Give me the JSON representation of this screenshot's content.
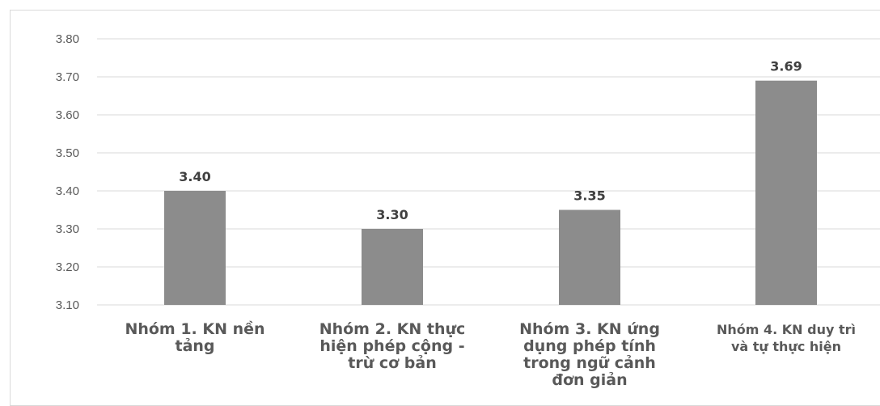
{
  "chart_data": {
    "type": "bar",
    "categories": [
      "Nhóm 1. KN nền tảng",
      "Nhóm 2. KN thực hiện phép cộng - trừ cơ bản",
      "Nhóm 3. KN ứng dụng phép tính trong ngữ cảnh đơn giản",
      "Nhóm 4. KN duy trì và tự thực hiện"
    ],
    "category_lines": [
      "Nhóm 1. KN nền\ntảng",
      "Nhóm 2. KN thực\nhiện phép cộng -\ntrừ cơ bản",
      "Nhóm 3. KN ứng\ndụng phép tính\ntrong ngữ cảnh\nđơn giản",
      "Nhóm 4. KN duy trì\nvà tự thực hiện"
    ],
    "values": [
      3.4,
      3.3,
      3.35,
      3.69
    ],
    "value_labels": [
      "3.40",
      "3.30",
      "3.35",
      "3.69"
    ],
    "ylim": [
      3.1,
      3.8
    ],
    "yticks": [
      "3.80",
      "3.70",
      "3.60",
      "3.50",
      "3.40",
      "3.30",
      "3.20",
      "3.10"
    ],
    "title": "",
    "xlabel": "",
    "ylabel": "",
    "grid": true,
    "bar_color": "#8c8c8c",
    "grid_color": "#d9d9d9"
  }
}
